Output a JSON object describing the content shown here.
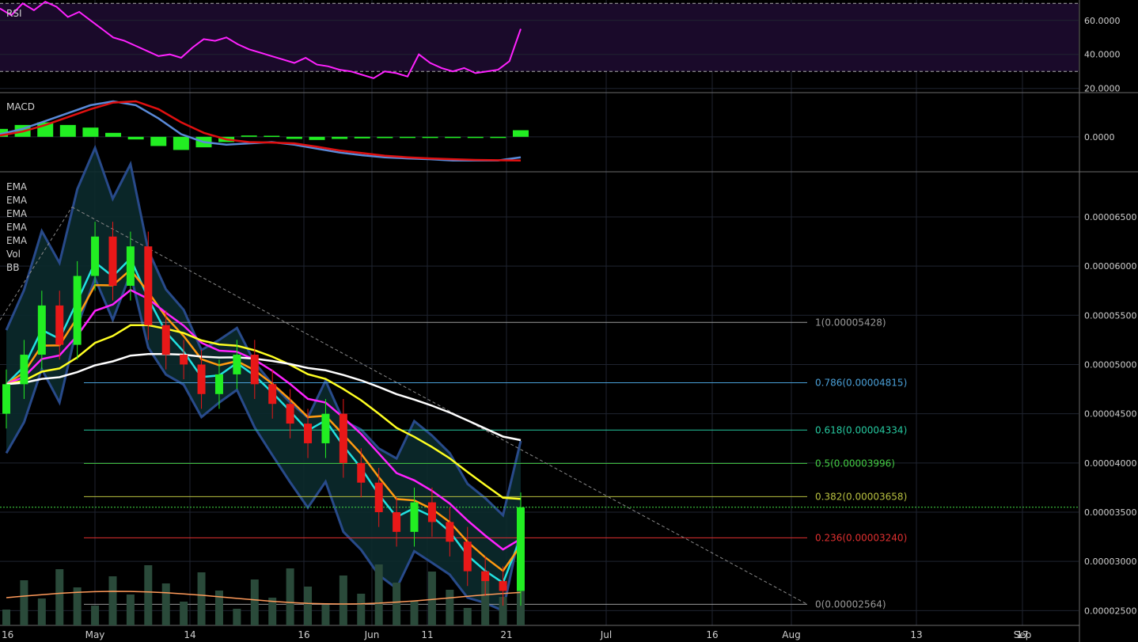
{
  "colors": {
    "background": "#000000",
    "grid": "#1f2430",
    "rsi_line": "#ff22ff",
    "rsi_band": "#1a0a2a",
    "macd_line": "#5a8ad8",
    "signal_line": "#e01010",
    "hist_up": "#22ee22",
    "candle_up": "#22ee22",
    "candle_down": "#e81818",
    "ema_cyan": "#22e0e0",
    "ema_orange": "#ff9a10",
    "ema_magenta": "#ff22ff",
    "ema_yellow": "#ffff22",
    "ema_white": "#ffffff",
    "bb_band": "#284a8a",
    "bb_fill": "#0b2a2c",
    "volume": "#2a4a3a",
    "volume_ma": "#ff9a5a",
    "trend_line": "#888888"
  },
  "panes": {
    "rsi": {
      "label": "RSI"
    },
    "macd": {
      "label": "MACD"
    },
    "price": {
      "indicators": [
        "EMA",
        "EMA",
        "EMA",
        "EMA",
        "EMA",
        "Vol",
        "BB"
      ]
    }
  },
  "chart_data": [
    {
      "type": "line",
      "pane": "rsi",
      "y_ticks": [
        "60.0000",
        "40.0000",
        "20.0000"
      ],
      "tick_values": [
        60,
        40,
        20
      ],
      "ylim": [
        18,
        72
      ],
      "levels": [
        70,
        30
      ],
      "series": [
        {
          "name": "RSI",
          "values": [
            67,
            63,
            70,
            66,
            71,
            68,
            62,
            65,
            60,
            55,
            50,
            48,
            45,
            42,
            39,
            40,
            38,
            44,
            49,
            48,
            50,
            46,
            43,
            41,
            39,
            37,
            35,
            38,
            34,
            33,
            31,
            30,
            28,
            26,
            30,
            29,
            27,
            40,
            35,
            32,
            30,
            32,
            29,
            30,
            31,
            36,
            55
          ]
        }
      ]
    },
    {
      "type": "line",
      "pane": "macd",
      "y_ticks": [
        "0.0000"
      ],
      "tick_values": [
        0
      ],
      "ylim": [
        -1.3,
        1.65
      ],
      "series": [
        {
          "name": "MACD",
          "values": [
            0.1,
            0.3,
            0.6,
            0.9,
            1.2,
            1.35,
            1.2,
            0.7,
            0.1,
            -0.2,
            -0.3,
            -0.25,
            -0.2,
            -0.3,
            -0.45,
            -0.6,
            -0.7,
            -0.78,
            -0.82,
            -0.85,
            -0.9,
            -0.9,
            -0.9,
            -0.78
          ]
        },
        {
          "name": "Signal",
          "values": [
            0.05,
            0.2,
            0.45,
            0.75,
            1.05,
            1.3,
            1.35,
            1.05,
            0.55,
            0.15,
            -0.1,
            -0.2,
            -0.22,
            -0.25,
            -0.38,
            -0.52,
            -0.62,
            -0.72,
            -0.78,
            -0.82,
            -0.85,
            -0.88,
            -0.89,
            -0.9
          ]
        },
        {
          "name": "Histogram",
          "values": [
            0.3,
            0.45,
            0.55,
            0.45,
            0.35,
            0.15,
            -0.1,
            -0.35,
            -0.5,
            -0.4,
            -0.2,
            0.05,
            0.04,
            -0.08,
            -0.12,
            -0.08,
            -0.06,
            -0.05,
            0.0,
            -0.02,
            -0.03,
            -0.02,
            0.0,
            0.25
          ]
        }
      ]
    },
    {
      "type": "candlestick",
      "pane": "price",
      "y_ticks": [
        "0.00006500",
        "0.00006000",
        "0.00005500",
        "0.00005000",
        "0.00004500",
        "0.00004000",
        "0.00003500",
        "0.00003000",
        "0.00002500"
      ],
      "tick_values": [
        6.5e-05,
        6e-05,
        5.5e-05,
        5e-05,
        4.5e-05,
        4e-05,
        3.5e-05,
        3e-05,
        2.5e-05
      ],
      "ylim": [
        2.35e-05,
        6.95e-05
      ],
      "x_ticks": [
        "16",
        "May",
        "14",
        "16",
        "Jun",
        "11",
        "21",
        "Jul",
        "16",
        "Aug",
        "13",
        "Sep",
        "17"
      ],
      "closes": [
        4.8,
        5.1,
        5.6,
        5.2,
        5.9,
        6.3,
        5.8,
        6.2,
        5.4,
        5.1,
        5.0,
        4.7,
        4.9,
        5.1,
        4.8,
        4.6,
        4.4,
        4.2,
        4.5,
        4.0,
        3.8,
        3.5,
        3.3,
        3.6,
        3.4,
        3.2,
        2.9,
        2.8,
        2.7,
        3.55
      ],
      "fibonacci": [
        {
          "label": "1(0.00005428)",
          "value": 5.428e-05,
          "color": "#9a9a9a"
        },
        {
          "label": "0.786(0.00004815)",
          "value": 4.815e-05,
          "color": "#4aa0d8"
        },
        {
          "label": "0.618(0.00004334)",
          "value": 4.334e-05,
          "color": "#26c9a0"
        },
        {
          "label": "0.5(0.00003996)",
          "value": 3.996e-05,
          "color": "#44cc44"
        },
        {
          "label": "0.382(0.00003658)",
          "value": 3.658e-05,
          "color": "#b8c040"
        },
        {
          "label": "0.236(0.00003240)",
          "value": 3.24e-05,
          "color": "#e03030"
        },
        {
          "label": "0(0.00002564)",
          "value": 2.564e-05,
          "color": "#9a9a9a"
        }
      ],
      "current_price_level": 3.55e-05
    }
  ]
}
